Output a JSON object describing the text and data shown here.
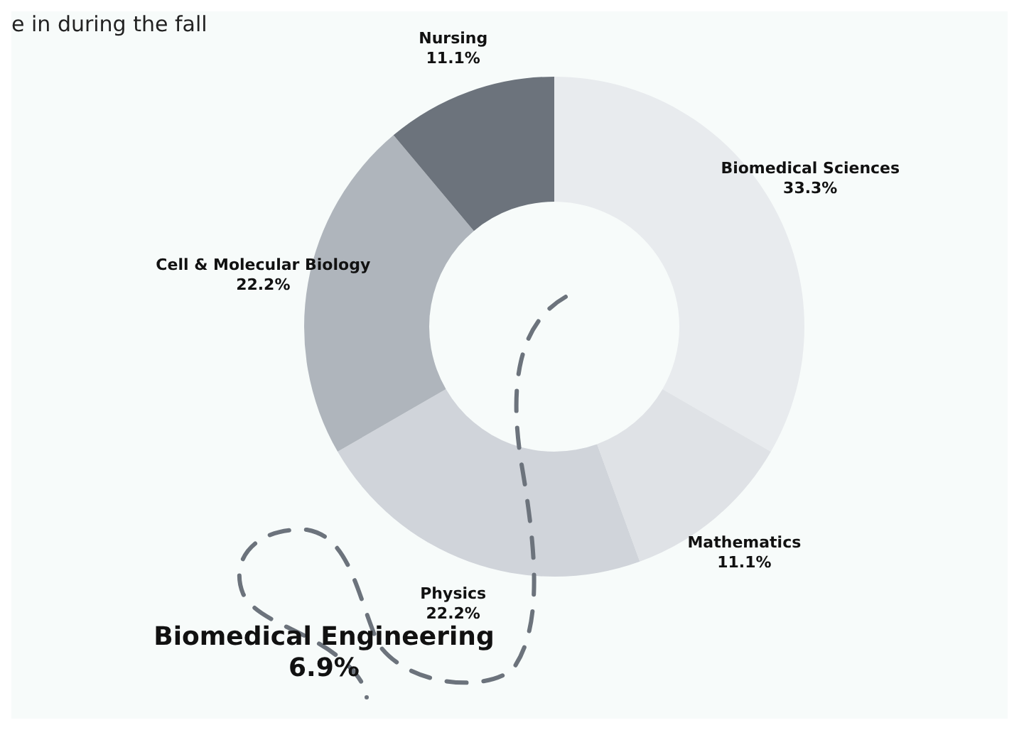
{
  "chart_data": {
    "type": "donut",
    "categories": [
      "Biomedical Sciences",
      "Mathematics",
      "Physics",
      "Cell & Molecular Biology",
      "Nursing"
    ],
    "values": [
      33.3,
      11.1,
      22.2,
      22.2,
      11.1
    ],
    "colors": [
      "#e8ebee",
      "#dfe2e6",
      "#d0d4da",
      "#afb5bc",
      "#6c737c"
    ],
    "value_labels": [
      "33.3%",
      "11.1%",
      "22.2%",
      "22.2%",
      "11.1%"
    ],
    "legend": false,
    "annotations": [
      "e in during the fall",
      "Biomedical Engineering\n6.9%"
    ]
  }
}
